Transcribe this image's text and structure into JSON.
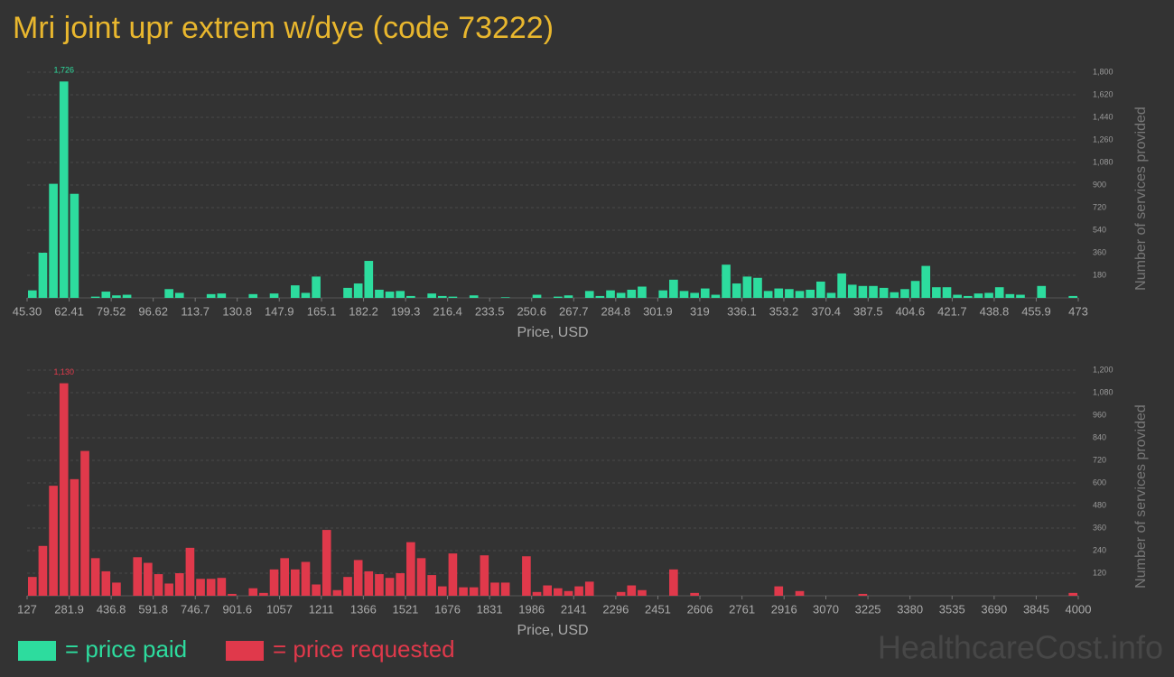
{
  "chart_data": [
    {
      "type": "histogram",
      "title": "Mri joint upr extrem w/dye (code 73222)",
      "color": "#2ddc9e",
      "x_label": "Price, USD",
      "y_label": "Number of services provided",
      "bins": [
        45.3,
        49.577,
        53.854,
        58.131,
        62.408,
        66.685,
        70.962,
        75.239,
        79.516,
        83.793,
        88.07,
        92.347,
        96.624,
        100.901,
        105.178,
        109.455,
        113.732,
        118.009,
        122.286,
        126.563,
        130.84,
        135.117,
        139.394,
        143.671,
        147.948,
        152.225,
        156.502,
        160.779,
        165.056,
        169.333,
        173.61,
        177.887,
        182.164,
        186.441,
        190.718,
        194.995,
        199.272,
        203.549,
        207.826,
        212.103,
        216.38,
        220.657,
        224.934,
        229.211,
        233.488,
        237.765,
        242.042,
        246.319,
        250.596,
        254.873,
        259.15,
        263.427,
        267.704,
        271.981,
        276.258,
        280.535,
        284.812,
        289.089,
        293.366,
        297.643,
        301.92,
        306.197,
        310.474,
        314.751,
        319.028,
        323.305,
        327.582,
        331.859,
        336.136,
        340.413,
        344.69,
        348.967,
        353.244,
        357.521,
        361.798,
        366.075,
        370.352,
        374.629,
        378.906,
        383.183,
        387.46,
        391.737,
        396.014,
        400.291,
        404.568,
        408.845,
        413.122,
        417.399,
        421.676,
        425.953,
        430.23,
        434.507,
        438.784,
        443.061,
        447.338,
        451.615,
        455.892,
        460.169,
        464.446,
        468.723,
        473.0
      ],
      "values": [
        60,
        360,
        910,
        1726,
        830,
        0,
        10,
        50,
        20,
        25,
        0,
        0,
        0,
        70,
        40,
        0,
        0,
        30,
        35,
        0,
        0,
        30,
        0,
        35,
        0,
        100,
        40,
        170,
        0,
        0,
        80,
        115,
        295,
        65,
        50,
        55,
        15,
        0,
        35,
        15,
        10,
        0,
        20,
        0,
        0,
        5,
        0,
        0,
        25,
        0,
        10,
        20,
        0,
        55,
        15,
        60,
        40,
        65,
        90,
        0,
        60,
        145,
        55,
        40,
        75,
        25,
        265,
        115,
        170,
        160,
        55,
        75,
        70,
        55,
        65,
        130,
        40,
        195,
        105,
        95,
        95,
        80,
        45,
        70,
        135,
        255,
        85,
        85,
        25,
        15,
        35,
        40,
        85,
        30,
        25,
        0,
        95,
        0,
        0,
        15
      ],
      "value_labels": [
        null,
        null,
        null,
        "1,726",
        null,
        null,
        null,
        null,
        null,
        null,
        null,
        null,
        null,
        null,
        null,
        null,
        null,
        null,
        null,
        null,
        null,
        null,
        null,
        null,
        null,
        null,
        null,
        null,
        null,
        null,
        null,
        null,
        null,
        null,
        null,
        null,
        null,
        null,
        null,
        null,
        null,
        null,
        null,
        null,
        null,
        null,
        null,
        null,
        null,
        null,
        null,
        null,
        null,
        null,
        null,
        null,
        null,
        null,
        null,
        null,
        null,
        null,
        null,
        null,
        null,
        null,
        null,
        null,
        null,
        null,
        null,
        null,
        null,
        null,
        null,
        null,
        null,
        null,
        null,
        null,
        null,
        null,
        null,
        null,
        null,
        null,
        null,
        null,
        null,
        null,
        null,
        null,
        null,
        null,
        null,
        null,
        null,
        null,
        null,
        null
      ],
      "xlim": [
        45.3,
        473
      ],
      "xticks": [
        {
          "value": 45.3,
          "label": "45.30"
        },
        62.41,
        79.52,
        96.62,
        113.7,
        130.8,
        147.9,
        165.1,
        182.2,
        199.3,
        216.4,
        233.5,
        250.6,
        267.7,
        284.8,
        301.9,
        319,
        336.1,
        353.2,
        370.4,
        387.5,
        404.6,
        421.7,
        438.8,
        455.9,
        473
      ],
      "ylim": [
        0,
        1800
      ],
      "yticks": [
        180,
        360,
        540,
        720,
        900,
        {
          "value": 1080,
          "label": "1,080"
        },
        {
          "value": 1260,
          "label": "1,260"
        },
        {
          "value": 1440,
          "label": "1,440"
        },
        {
          "value": 1620,
          "label": "1,620"
        },
        {
          "value": 1800,
          "label": "1,800"
        }
      ],
      "grid": true
    },
    {
      "type": "histogram",
      "color": "#e0394b",
      "x_label": "Price, USD",
      "y_label": "Number of services provided",
      "bins": [
        127,
        165.73,
        204.46,
        243.19,
        281.92,
        320.65,
        359.38,
        398.11,
        436.84,
        475.57,
        514.3,
        553.03,
        591.76,
        630.49,
        669.22,
        707.95,
        746.68,
        785.41,
        824.14,
        862.87,
        901.6,
        940.33,
        979.06,
        1017.79,
        1056.52,
        1095.25,
        1133.98,
        1172.71,
        1211.44,
        1250.17,
        1288.9,
        1327.63,
        1366.36,
        1405.09,
        1443.82,
        1482.55,
        1521.28,
        1560.01,
        1598.74,
        1637.47,
        1676.2,
        1714.93,
        1753.66,
        1792.39,
        1831.12,
        1869.85,
        1908.58,
        1947.31,
        1986.04,
        2024.77,
        2063.5,
        2102.23,
        2140.96,
        2179.69,
        2218.42,
        2257.15,
        2295.88,
        2334.61,
        2373.34,
        2412.07,
        2450.8,
        2489.53,
        2528.26,
        2566.99,
        2605.72,
        2644.45,
        2683.18,
        2721.91,
        2760.64,
        2799.37,
        2838.1,
        2876.83,
        2915.56,
        2954.29,
        2993.02,
        3031.75,
        3070.48,
        3109.21,
        3147.94,
        3186.67,
        3225.4,
        3264.13,
        3302.86,
        3341.59,
        3380.32,
        3419.05,
        3457.78,
        3496.51,
        3535.24,
        3573.97,
        3612.7,
        3651.43,
        3690.16,
        3728.89,
        3767.62,
        3806.35,
        3845.08,
        3883.81,
        3922.54,
        3961.27,
        4000
      ],
      "values": [
        100,
        265,
        585,
        1130,
        620,
        770,
        200,
        130,
        70,
        0,
        205,
        175,
        115,
        65,
        120,
        255,
        90,
        90,
        95,
        10,
        0,
        40,
        15,
        140,
        200,
        140,
        180,
        60,
        350,
        30,
        100,
        190,
        130,
        115,
        95,
        120,
        285,
        200,
        110,
        50,
        225,
        45,
        45,
        215,
        70,
        70,
        0,
        210,
        20,
        55,
        40,
        25,
        50,
        75,
        0,
        0,
        20,
        55,
        30,
        0,
        0,
        140,
        0,
        15,
        0,
        0,
        0,
        0,
        0,
        0,
        0,
        50,
        0,
        25,
        0,
        0,
        0,
        0,
        0,
        10,
        0,
        0,
        0,
        0,
        0,
        0,
        0,
        0,
        0,
        0,
        0,
        0,
        0,
        0,
        0,
        0,
        0,
        0,
        0,
        15
      ],
      "value_labels": [
        null,
        null,
        null,
        "1,130",
        null,
        null,
        null,
        null,
        null,
        null,
        null,
        null,
        null,
        null,
        null,
        null,
        null,
        null,
        null,
        null,
        null,
        null,
        null,
        null,
        null,
        null,
        null,
        null,
        null,
        null,
        null,
        null,
        null,
        null,
        null,
        null,
        null,
        null,
        null,
        null,
        null,
        null,
        null,
        null,
        null,
        null,
        null,
        null,
        null,
        null,
        null,
        null,
        null,
        null,
        null,
        null,
        null,
        null,
        null,
        null,
        null,
        null,
        null,
        null,
        null,
        null,
        null,
        null,
        null,
        null,
        null,
        null,
        null,
        null,
        null,
        null,
        null,
        null,
        null,
        null,
        null,
        null,
        null,
        null,
        null,
        null,
        null,
        null,
        null,
        null,
        null,
        null,
        null,
        null,
        null,
        null,
        null,
        null,
        null,
        null
      ],
      "xlim": [
        127,
        4000
      ],
      "xticks": [
        127,
        281.9,
        436.8,
        591.8,
        746.7,
        901.6,
        1057,
        1211,
        1366,
        1521,
        1676,
        1831,
        1986,
        2141,
        2296,
        2451,
        2606,
        2761,
        2916,
        3070,
        3225,
        3380,
        3535,
        3690,
        3845,
        4000
      ],
      "ylim": [
        0,
        1200
      ],
      "yticks": [
        120,
        240,
        360,
        480,
        600,
        720,
        840,
        960,
        {
          "value": 1080,
          "label": "1,080"
        },
        {
          "value": 1200,
          "label": "1,200"
        }
      ],
      "grid": true
    }
  ],
  "legend": [
    {
      "label": "= price paid",
      "color": "#2ddc9e"
    },
    {
      "label": "= price requested",
      "color": "#e0394b"
    }
  ],
  "watermark": "HealthcareCost.info"
}
